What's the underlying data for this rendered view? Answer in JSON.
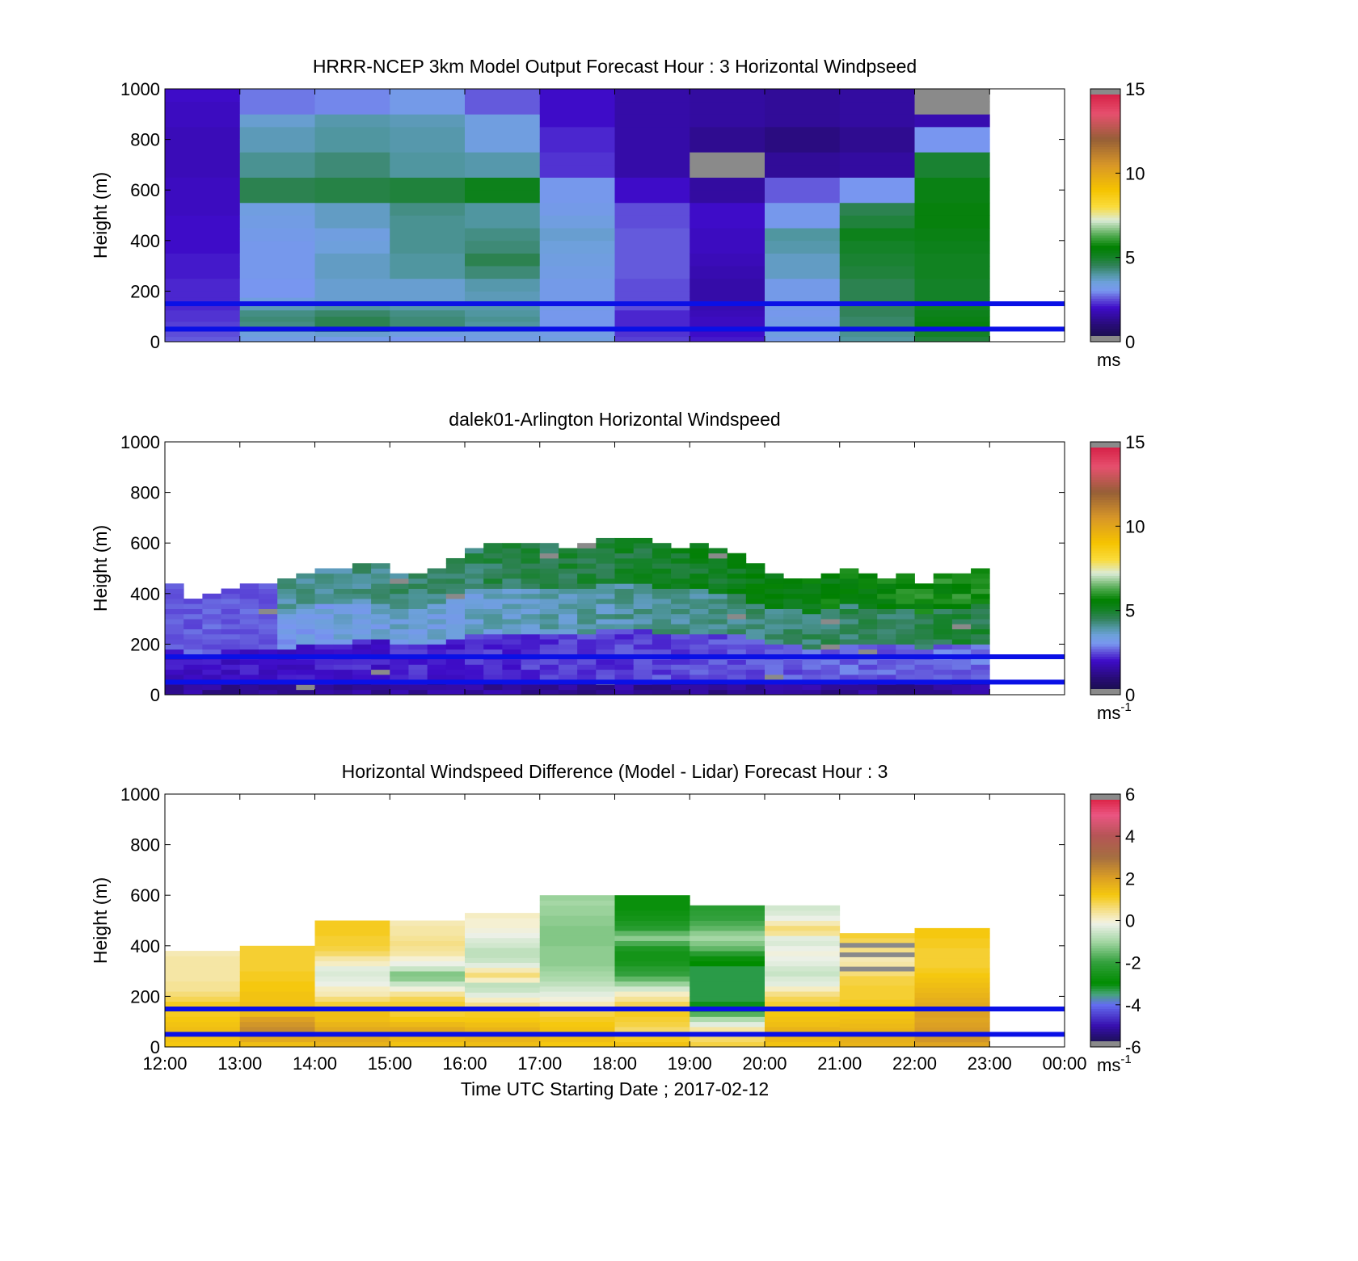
{
  "x_axis": {
    "ticks": [
      "12:00",
      "13:00",
      "14:00",
      "15:00",
      "16:00",
      "17:00",
      "18:00",
      "19:00",
      "20:00",
      "21:00",
      "22:00",
      "23:00",
      "00:00"
    ],
    "label": "Time UTC  Starting Date ; 2017-02-12"
  },
  "reference_heights_m": [
    50,
    150
  ],
  "reference_line_color": "#0a10e6",
  "chart_data": [
    {
      "type": "heatmap",
      "title": "HRRR-NCEP 3km Model Output   Forecast Hour : 3 Horizontal Windpseed",
      "ylabel": "Height (m)",
      "ylim": [
        0,
        1000
      ],
      "yticks": [
        "0",
        "200",
        "400",
        "600",
        "800",
        "1000"
      ],
      "hours": [
        12,
        13,
        14,
        15,
        16,
        17,
        18,
        19,
        20,
        21,
        22
      ],
      "level_tops_m": [
        20,
        40,
        60,
        80,
        100,
        125,
        150,
        175,
        200,
        250,
        300,
        350,
        400,
        450,
        500,
        550,
        600,
        650,
        700,
        750,
        800,
        850,
        900,
        950,
        1000
      ],
      "values": [
        [
          2.6,
          2.5,
          2.4,
          2.4,
          2.3,
          2.3,
          2.2,
          2.2,
          2.2,
          2.2,
          2.1,
          2.1,
          2.0,
          2.0,
          2.0,
          1.9,
          1.9,
          1.9,
          1.8,
          1.8,
          1.8,
          1.8,
          1.9,
          1.9,
          2.0
        ],
        [
          3.3,
          3.5,
          4.0,
          4.2,
          4.3,
          4.2,
          3.8,
          3.4,
          3.0,
          3.0,
          3.1,
          3.1,
          3.1,
          3.2,
          3.3,
          3.4,
          4.6,
          4.6,
          4.1,
          4.1,
          3.8,
          3.8,
          3.6,
          2.8,
          2.8
        ],
        [
          3.2,
          3.6,
          4.4,
          4.6,
          4.6,
          4.4,
          4.0,
          3.6,
          3.6,
          3.6,
          3.7,
          3.7,
          3.5,
          3.4,
          3.7,
          3.7,
          4.7,
          4.7,
          4.3,
          4.3,
          4.0,
          4.0,
          3.9,
          2.9,
          2.9
        ],
        [
          3.0,
          3.4,
          3.9,
          4.3,
          4.3,
          4.2,
          3.9,
          3.6,
          3.6,
          3.6,
          4.0,
          4.0,
          4.1,
          4.1,
          4.1,
          4.2,
          4.8,
          4.8,
          4.0,
          4.0,
          3.9,
          3.9,
          3.8,
          3.2,
          3.2
        ],
        [
          3.3,
          3.4,
          3.7,
          4.0,
          4.1,
          4.0,
          3.9,
          3.8,
          3.8,
          3.9,
          4.3,
          4.6,
          4.3,
          4.2,
          4.0,
          4.0,
          5.2,
          5.2,
          3.9,
          3.9,
          3.4,
          3.4,
          3.4,
          2.6,
          2.6
        ],
        [
          3.4,
          3.3,
          3.2,
          3.1,
          3.1,
          3.1,
          3.2,
          3.2,
          3.2,
          3.2,
          3.3,
          3.4,
          3.5,
          3.6,
          3.4,
          3.2,
          3.1,
          3.1,
          2.3,
          2.3,
          2.2,
          2.2,
          2.0,
          2.0,
          2.0
        ],
        [
          2.4,
          2.3,
          2.2,
          2.2,
          2.2,
          2.2,
          2.5,
          2.5,
          2.5,
          2.5,
          2.6,
          2.6,
          2.6,
          2.6,
          2.5,
          2.5,
          2.0,
          2.0,
          1.6,
          1.6,
          1.6,
          1.6,
          1.6,
          1.6,
          1.6
        ],
        [
          2.1,
          2.0,
          1.9,
          1.9,
          1.9,
          1.8,
          1.7,
          1.6,
          1.6,
          1.6,
          1.7,
          1.8,
          1.9,
          1.9,
          2.0,
          2.0,
          1.5,
          1.5,
          null,
          null,
          1.3,
          1.3,
          1.5,
          1.5,
          1.5
        ],
        [
          3.2,
          3.4,
          3.4,
          3.3,
          3.2,
          3.1,
          3.2,
          3.2,
          3.2,
          3.2,
          3.7,
          3.7,
          3.9,
          4.0,
          3.1,
          3.1,
          2.6,
          2.6,
          1.4,
          1.4,
          1.1,
          1.1,
          1.4,
          1.4,
          1.4
        ],
        [
          4.0,
          4.1,
          4.3,
          4.4,
          4.4,
          4.5,
          4.5,
          4.6,
          4.6,
          4.6,
          4.8,
          4.9,
          5.0,
          5.2,
          4.8,
          4.6,
          3.0,
          3.0,
          1.5,
          1.5,
          1.3,
          1.3,
          1.5,
          1.5,
          1.5
        ],
        [
          4.8,
          5.0,
          5.2,
          5.4,
          5.3,
          5.2,
          5.1,
          5.0,
          5.0,
          5.0,
          5.1,
          5.1,
          5.2,
          5.3,
          5.4,
          5.4,
          5.3,
          5.3,
          4.9,
          4.9,
          3.0,
          3.0,
          1.7,
          null,
          null
        ]
      ],
      "colorbar": {
        "ticks": [
          "0",
          "5",
          "10",
          "15"
        ],
        "min": 0,
        "max": 15,
        "unit": "ms",
        "unit_sup": ""
      }
    },
    {
      "type": "heatmap",
      "title": "dalek01-Arlington  Horizontal Windspeed",
      "ylabel": "Height (m)",
      "ylim": [
        0,
        1000
      ],
      "yticks": [
        "0",
        "200",
        "400",
        "600",
        "800",
        "1000"
      ],
      "time_step_h": 0.25,
      "bin_m": 20,
      "column_tops_m": [
        440,
        380,
        390,
        420,
        430,
        440,
        450,
        470,
        500,
        500,
        520,
        510,
        480,
        470,
        500,
        540,
        580,
        590,
        600,
        590,
        600,
        580,
        600,
        620,
        620,
        610,
        590,
        580,
        590,
        570,
        560,
        510,
        480,
        460,
        450,
        470,
        500,
        480,
        460,
        470,
        440,
        470,
        480,
        500
      ],
      "colorbar": {
        "ticks": [
          "0",
          "5",
          "10",
          "15"
        ],
        "min": 0,
        "max": 15,
        "unit": "ms",
        "unit_sup": "-1"
      }
    },
    {
      "type": "heatmap",
      "title": "Horizontal Windspeed Difference (Model - Lidar) Forecast Hour : 3",
      "ylabel": "Height (m)",
      "ylim": [
        0,
        1000
      ],
      "yticks": [
        "0",
        "200",
        "400",
        "600",
        "800",
        "1000"
      ],
      "hours": [
        12,
        13,
        14,
        15,
        16,
        17,
        18,
        19,
        20,
        21,
        22
      ],
      "column_tops_m": [
        380,
        400,
        500,
        500,
        530,
        600,
        600,
        560,
        560,
        450,
        470
      ],
      "values": [
        [
          1.2,
          1.3,
          1.5,
          1.4,
          1.3,
          1.2,
          1.1,
          1.2,
          1.1,
          0.8,
          0.6,
          0.4,
          0.4,
          0.3,
          0.3,
          0.3,
          0.3,
          0.3,
          0.2
        ],
        [
          1.4,
          1.8,
          2.2,
          2.4,
          2.2,
          2.0,
          1.5,
          1.4,
          1.4,
          1.3,
          1.3,
          1.2,
          1.2,
          1.1,
          1.1,
          1.0,
          1.0,
          1.0,
          1.0,
          1.0
        ],
        [
          1.6,
          1.8,
          2.0,
          1.8,
          1.6,
          1.4,
          1.4,
          1.2,
          1.0,
          0.6,
          0.2,
          0.1,
          -0.2,
          -0.3,
          -0.4,
          -0.3,
          0.1,
          0.3,
          0.7,
          0.9,
          1.0,
          1.0,
          1.1,
          1.1,
          1.1
        ],
        [
          1.3,
          1.5,
          1.9,
          1.8,
          1.5,
          1.2,
          1.0,
          1.0,
          1.0,
          0.8,
          0.4,
          -0.1,
          -0.6,
          -1.2,
          -1.3,
          -0.6,
          -0.2,
          0.0,
          0.3,
          0.4,
          0.5,
          0.4,
          0.3,
          0.3,
          0.2
        ],
        [
          1.4,
          1.6,
          1.7,
          1.6,
          1.4,
          1.2,
          1.1,
          1.0,
          0.5,
          0.1,
          -0.3,
          -0.6,
          -0.7,
          0.1,
          0.6,
          0.2,
          -0.3,
          -0.6,
          -0.7,
          -0.7,
          -0.5,
          -0.4,
          -0.2,
          -0.1,
          0.0,
          0.0,
          0.1
        ],
        [
          1.2,
          1.4,
          1.5,
          1.3,
          1.2,
          1.1,
          0.9,
          0.6,
          0.2,
          -0.1,
          -0.3,
          -0.5,
          -0.7,
          -0.9,
          -1.0,
          -1.1,
          -1.2,
          -1.2,
          -1.2,
          -1.2,
          -1.3,
          -1.3,
          -1.3,
          -1.3,
          -1.2,
          -1.2,
          -1.1,
          -1.1,
          -1.0,
          -1.1
        ],
        [
          1.3,
          1.1,
          0.9,
          0.7,
          0.9,
          1.0,
          1.1,
          1.0,
          0.8,
          0.4,
          0.1,
          -0.5,
          -1.1,
          -1.6,
          -2.0,
          -2.2,
          -2.5,
          -2.6,
          -2.6,
          -2.4,
          -1.8,
          -1.2,
          -1.6,
          -2.2,
          -2.4,
          -2.6,
          -2.7,
          -2.8,
          -2.8,
          -2.8
        ],
        [
          0.9,
          0.7,
          0.6,
          0.3,
          -0.3,
          -0.9,
          -1.7,
          -2.6,
          -3.1,
          -3.3,
          -3.3,
          -3.3,
          -3.3,
          -3.3,
          -3.3,
          -3.3,
          -3.0,
          -2.8,
          -2.2,
          -1.6,
          -1.3,
          -1.0,
          -1.2,
          -1.6,
          -1.8,
          -2.0,
          -2.1,
          -2.2
        ],
        [
          1.3,
          1.5,
          1.7,
          1.6,
          1.4,
          1.3,
          1.2,
          1.1,
          1.0,
          0.8,
          0.5,
          0.1,
          -0.3,
          -0.4,
          -0.6,
          -0.5,
          -0.3,
          -0.2,
          -0.1,
          -0.2,
          -0.4,
          -0.3,
          0.4,
          0.6,
          0.2,
          -0.2,
          -0.4,
          -0.5
        ],
        [
          1.6,
          1.7,
          1.8,
          1.6,
          1.5,
          1.4,
          1.3,
          1.2,
          1.2,
          1.1,
          1.0,
          1.0,
          1.0,
          0.9,
          0.9,
          0.6,
          null,
          0.3,
          0.2,
          null,
          0.5,
          null,
          0.8,
          1.0
        ],
        [
          1.9,
          2.2,
          2.3,
          2.1,
          2.0,
          1.9,
          2.0,
          1.9,
          1.8,
          1.7,
          1.6,
          1.5,
          1.4,
          1.3,
          1.2,
          1.1,
          1.0,
          1.0,
          1.0,
          1.0,
          1.1,
          1.1,
          1.2,
          1.2
        ]
      ],
      "colorbar": {
        "ticks": [
          "-6",
          "-4",
          "-2",
          "0",
          "2",
          "4",
          "6"
        ],
        "min": -6,
        "max": 6,
        "unit": "ms",
        "unit_sup": "-1"
      }
    }
  ]
}
